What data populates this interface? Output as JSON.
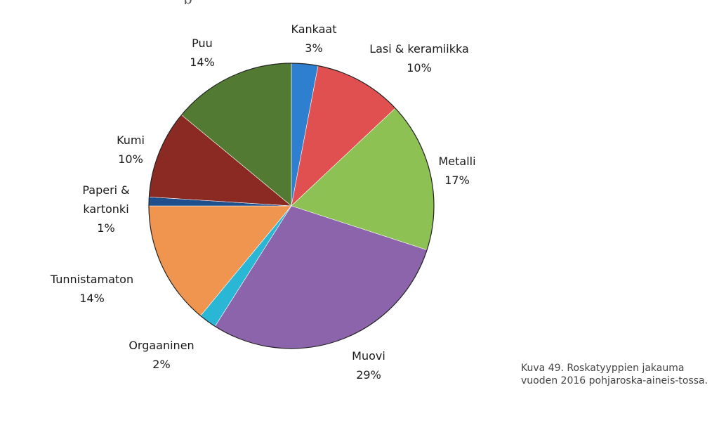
{
  "chart_data": {
    "type": "pie",
    "title": "",
    "start_angle_deg": 0,
    "direction": "clockwise",
    "slices": [
      {
        "label": "Kankaat",
        "value": 3,
        "display": "3%",
        "color": "#2e7fd0"
      },
      {
        "label": "Lasi & keramiikka",
        "value": 10,
        "display": "10%",
        "color": "#e05050"
      },
      {
        "label": "Metalli",
        "value": 17,
        "display": "17%",
        "color": "#8ec153"
      },
      {
        "label": "Muovi",
        "value": 29,
        "display": "29%",
        "color": "#8c64ab"
      },
      {
        "label": "Orgaaninen",
        "value": 2,
        "display": "2%",
        "color": "#2ab7d6"
      },
      {
        "label": "Tunnistamaton",
        "value": 14,
        "display": "14%",
        "color": "#f09550"
      },
      {
        "label": "Paperi &\nkartonki",
        "value": 1,
        "display": "1%",
        "color": "#1f4f8c"
      },
      {
        "label": "Kumi",
        "value": 10,
        "display": "10%",
        "color": "#8b2a23"
      },
      {
        "label": "Puu",
        "value": 14,
        "display": "14%",
        "color": "#537a32"
      }
    ]
  },
  "caption": "Kuva 49. Roskatyyppien jakauma vuoden 2016 pohjaroska-aineis-tossa."
}
